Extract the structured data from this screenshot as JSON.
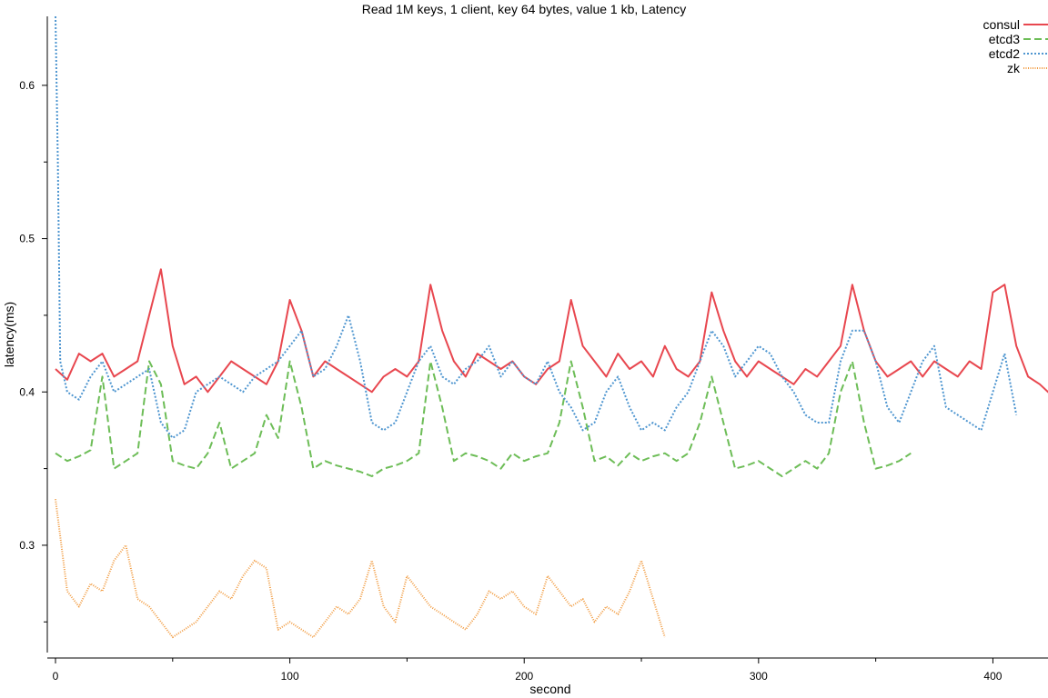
{
  "chart_data": {
    "type": "line",
    "title": "Read 1M keys, 1 client, key 64 bytes, value 1 kb, Latency",
    "xlabel": "second",
    "ylabel": "latency(ms)",
    "xlim": [
      0,
      427
    ],
    "ylim": [
      0.23,
      0.645
    ],
    "x_ticks": [
      0,
      100,
      200,
      300,
      400
    ],
    "x_minor_ticks": [
      50,
      150,
      250,
      350
    ],
    "y_ticks": [
      0.3,
      0.4,
      0.5,
      0.6
    ],
    "y_minor_ticks": [
      0.25,
      0.35,
      0.45,
      0.55
    ],
    "y_tick_labels": [
      "0.3",
      "0.4",
      "0.5",
      "0.6"
    ],
    "legend_position": "top-right",
    "grid": false,
    "series": [
      {
        "name": "consul",
        "color": "#e8474f",
        "dash": "solid",
        "x": [
          0,
          5,
          10,
          15,
          20,
          25,
          30,
          35,
          40,
          45,
          50,
          55,
          60,
          65,
          70,
          75,
          80,
          85,
          90,
          95,
          100,
          105,
          110,
          115,
          120,
          125,
          130,
          135,
          140,
          145,
          150,
          155,
          160,
          165,
          170,
          175,
          180,
          185,
          190,
          195,
          200,
          205,
          210,
          215,
          220,
          225,
          230,
          235,
          240,
          245,
          250,
          255,
          260,
          265,
          270,
          275,
          280,
          285,
          290,
          295,
          300,
          305,
          310,
          315,
          320,
          325,
          330,
          335,
          340,
          345,
          350,
          355,
          360,
          365,
          370,
          375,
          380,
          385,
          390,
          395,
          400,
          405,
          410,
          415,
          420,
          427
        ],
        "values": [
          0.415,
          0.408,
          0.425,
          0.42,
          0.425,
          0.41,
          0.415,
          0.42,
          0.45,
          0.48,
          0.43,
          0.405,
          0.41,
          0.4,
          0.41,
          0.42,
          0.415,
          0.41,
          0.405,
          0.42,
          0.46,
          0.44,
          0.41,
          0.42,
          0.415,
          0.41,
          0.405,
          0.4,
          0.41,
          0.415,
          0.41,
          0.42,
          0.47,
          0.44,
          0.42,
          0.41,
          0.425,
          0.42,
          0.415,
          0.42,
          0.41,
          0.405,
          0.415,
          0.42,
          0.46,
          0.43,
          0.42,
          0.41,
          0.425,
          0.415,
          0.42,
          0.41,
          0.43,
          0.415,
          0.41,
          0.42,
          0.465,
          0.44,
          0.42,
          0.41,
          0.42,
          0.415,
          0.41,
          0.405,
          0.415,
          0.41,
          0.42,
          0.43,
          0.47,
          0.44,
          0.42,
          0.41,
          0.415,
          0.42,
          0.41,
          0.42,
          0.415,
          0.41,
          0.42,
          0.415,
          0.465,
          0.47,
          0.43,
          0.41,
          0.405,
          0.395
        ]
      },
      {
        "name": "etcd3",
        "color": "#6dbd57",
        "dash": "dashed",
        "x": [
          0,
          5,
          10,
          15,
          20,
          25,
          30,
          35,
          40,
          45,
          50,
          55,
          60,
          65,
          70,
          75,
          80,
          85,
          90,
          95,
          100,
          105,
          110,
          115,
          120,
          125,
          130,
          135,
          140,
          145,
          150,
          155,
          160,
          165,
          170,
          175,
          180,
          185,
          190,
          195,
          200,
          205,
          210,
          215,
          220,
          225,
          230,
          235,
          240,
          245,
          250,
          255,
          260,
          265,
          270,
          275,
          280,
          285,
          290,
          295,
          300,
          305,
          310,
          315,
          320,
          325,
          330,
          335,
          340,
          345,
          350,
          355,
          360,
          365
        ],
        "values": [
          0.36,
          0.355,
          0.358,
          0.362,
          0.41,
          0.35,
          0.355,
          0.36,
          0.42,
          0.405,
          0.355,
          0.352,
          0.35,
          0.36,
          0.38,
          0.35,
          0.355,
          0.36,
          0.385,
          0.37,
          0.42,
          0.39,
          0.35,
          0.355,
          0.352,
          0.35,
          0.348,
          0.345,
          0.35,
          0.352,
          0.355,
          0.36,
          0.42,
          0.39,
          0.355,
          0.36,
          0.358,
          0.355,
          0.35,
          0.36,
          0.355,
          0.358,
          0.36,
          0.38,
          0.42,
          0.39,
          0.355,
          0.358,
          0.352,
          0.36,
          0.355,
          0.358,
          0.36,
          0.355,
          0.36,
          0.38,
          0.41,
          0.38,
          0.35,
          0.352,
          0.355,
          0.35,
          0.345,
          0.35,
          0.355,
          0.35,
          0.36,
          0.4,
          0.42,
          0.38,
          0.35,
          0.352,
          0.355,
          0.36
        ]
      },
      {
        "name": "etcd2",
        "color": "#4f96d0",
        "dash": "dotted",
        "x": [
          0,
          1,
          2,
          5,
          10,
          15,
          20,
          25,
          30,
          35,
          40,
          45,
          50,
          55,
          60,
          65,
          70,
          75,
          80,
          85,
          90,
          95,
          100,
          105,
          110,
          115,
          120,
          125,
          130,
          135,
          140,
          145,
          150,
          155,
          160,
          165,
          170,
          175,
          180,
          185,
          190,
          195,
          200,
          205,
          210,
          215,
          220,
          225,
          230,
          235,
          240,
          245,
          250,
          255,
          260,
          265,
          270,
          275,
          280,
          285,
          290,
          295,
          300,
          305,
          310,
          315,
          320,
          325,
          330,
          335,
          340,
          345,
          350,
          355,
          360,
          365,
          370,
          375,
          380,
          385,
          390,
          395,
          400,
          405,
          410
        ],
        "values": [
          0.645,
          0.55,
          0.42,
          0.4,
          0.395,
          0.41,
          0.42,
          0.4,
          0.405,
          0.41,
          0.415,
          0.38,
          0.37,
          0.375,
          0.4,
          0.405,
          0.41,
          0.405,
          0.4,
          0.41,
          0.415,
          0.42,
          0.43,
          0.44,
          0.41,
          0.415,
          0.43,
          0.45,
          0.42,
          0.38,
          0.375,
          0.38,
          0.4,
          0.42,
          0.43,
          0.41,
          0.405,
          0.415,
          0.42,
          0.43,
          0.41,
          0.42,
          0.41,
          0.405,
          0.42,
          0.4,
          0.39,
          0.375,
          0.38,
          0.4,
          0.41,
          0.39,
          0.375,
          0.38,
          0.375,
          0.39,
          0.4,
          0.42,
          0.44,
          0.43,
          0.41,
          0.42,
          0.43,
          0.425,
          0.41,
          0.4,
          0.385,
          0.38,
          0.38,
          0.42,
          0.44,
          0.44,
          0.42,
          0.39,
          0.38,
          0.4,
          0.42,
          0.43,
          0.39,
          0.385,
          0.38,
          0.375,
          0.4,
          0.425,
          0.385
        ]
      },
      {
        "name": "zk",
        "color": "#f19a3e",
        "dash": "dense-dotted",
        "x": [
          0,
          5,
          10,
          15,
          20,
          25,
          30,
          35,
          40,
          45,
          50,
          55,
          60,
          65,
          70,
          75,
          80,
          85,
          90,
          95,
          100,
          105,
          110,
          115,
          120,
          125,
          130,
          135,
          140,
          145,
          150,
          155,
          160,
          165,
          170,
          175,
          180,
          185,
          190,
          195,
          200,
          205,
          210,
          215,
          220,
          225,
          230,
          235,
          240,
          245,
          250,
          255,
          260
        ],
        "values": [
          0.33,
          0.27,
          0.26,
          0.275,
          0.27,
          0.29,
          0.3,
          0.265,
          0.26,
          0.25,
          0.24,
          0.245,
          0.25,
          0.26,
          0.27,
          0.265,
          0.28,
          0.29,
          0.285,
          0.245,
          0.25,
          0.245,
          0.24,
          0.25,
          0.26,
          0.255,
          0.265,
          0.29,
          0.26,
          0.25,
          0.28,
          0.27,
          0.26,
          0.255,
          0.25,
          0.245,
          0.255,
          0.27,
          0.265,
          0.27,
          0.26,
          0.255,
          0.28,
          0.27,
          0.26,
          0.265,
          0.25,
          0.26,
          0.255,
          0.27,
          0.29,
          0.265,
          0.24
        ]
      }
    ]
  }
}
